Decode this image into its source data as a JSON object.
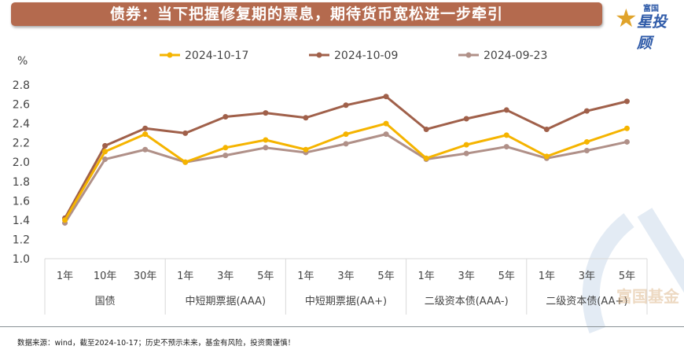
{
  "header": {
    "title": "债券：当下把握修复期的票息，期待货币宽松进一步牵引"
  },
  "logo": {
    "small": "富国",
    "big": "星投顾",
    "star_icon": "star-icon"
  },
  "watermark": "富国基金",
  "footer": {
    "note": "数据来源：wind，截至2024-10-17；历史不预示未来，基金有风险，投资需谨慎！"
  },
  "chart_data": {
    "type": "line",
    "ylabel": "%",
    "ylim": [
      1.0,
      2.8
    ],
    "yticks": [
      "1.0",
      "1.2",
      "1.4",
      "1.6",
      "1.8",
      "2.0",
      "2.2",
      "2.4",
      "2.6",
      "2.8"
    ],
    "grid": false,
    "legend": "top",
    "groups": [
      {
        "name": "国债",
        "categories": [
          "1年",
          "10年",
          "30年"
        ]
      },
      {
        "name": "中短期票据(AAA)",
        "categories": [
          "1年",
          "3年",
          "5年"
        ]
      },
      {
        "name": "中短期票据(AA+)",
        "categories": [
          "1年",
          "3年",
          "5年"
        ]
      },
      {
        "name": "二级资本债(AAA-)",
        "categories": [
          "1年",
          "3年",
          "5年"
        ]
      },
      {
        "name": "二级资本债(AA+)",
        "categories": [
          "1年",
          "3年",
          "5年"
        ]
      }
    ],
    "series": [
      {
        "name": "2024-10-17",
        "color": "#f5b400",
        "values": [
          1.4,
          2.11,
          2.29,
          2.0,
          2.15,
          2.23,
          2.13,
          2.29,
          2.4,
          2.04,
          2.18,
          2.28,
          2.06,
          2.21,
          2.35
        ]
      },
      {
        "name": "2024-10-09",
        "color": "#a0604a",
        "values": [
          1.42,
          2.17,
          2.35,
          2.3,
          2.47,
          2.51,
          2.46,
          2.59,
          2.68,
          2.34,
          2.45,
          2.54,
          2.34,
          2.53,
          2.63
        ]
      },
      {
        "name": "2024-09-23",
        "color": "#b09088",
        "values": [
          1.37,
          2.03,
          2.13,
          2.0,
          2.07,
          2.15,
          2.1,
          2.19,
          2.29,
          2.03,
          2.09,
          2.16,
          2.04,
          2.12,
          2.21
        ]
      }
    ]
  }
}
